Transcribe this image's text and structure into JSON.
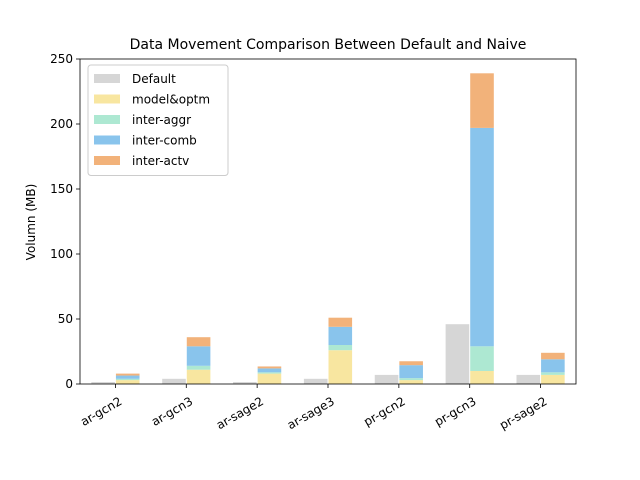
{
  "chart_data": {
    "type": "bar",
    "title": "Data Movement Comparison Between Default and Naive",
    "xlabel": "",
    "ylabel": "Volumn (MB)",
    "ylim": [
      0,
      250
    ],
    "yticks": [
      0,
      50,
      100,
      150,
      200,
      250
    ],
    "categories": [
      "ar-gcn2",
      "ar-gcn3",
      "ar-sage2",
      "ar-sage3",
      "pr-gcn2",
      "pr-gcn3",
      "pr-sage2"
    ],
    "default_series": {
      "name": "Default",
      "color": "#d6d6d6",
      "values": [
        1.5,
        4,
        1.5,
        4,
        7,
        46,
        7
      ]
    },
    "stacked_series": [
      {
        "name": "model&optm",
        "color": "#f8e6a0",
        "values": [
          3,
          11,
          8,
          26,
          3,
          10,
          7
        ]
      },
      {
        "name": "inter-aggr",
        "color": "#ade8d2",
        "values": [
          1,
          3,
          1,
          4,
          1.5,
          19,
          2
        ]
      },
      {
        "name": "inter-comb",
        "color": "#89c4ec",
        "values": [
          2.5,
          15,
          3,
          14,
          10,
          168,
          10
        ]
      },
      {
        "name": "inter-actv",
        "color": "#f2b27a",
        "values": [
          1.5,
          7,
          1.5,
          7,
          3,
          42,
          5
        ]
      }
    ],
    "legend_position": "upper-left",
    "grid": false
  }
}
